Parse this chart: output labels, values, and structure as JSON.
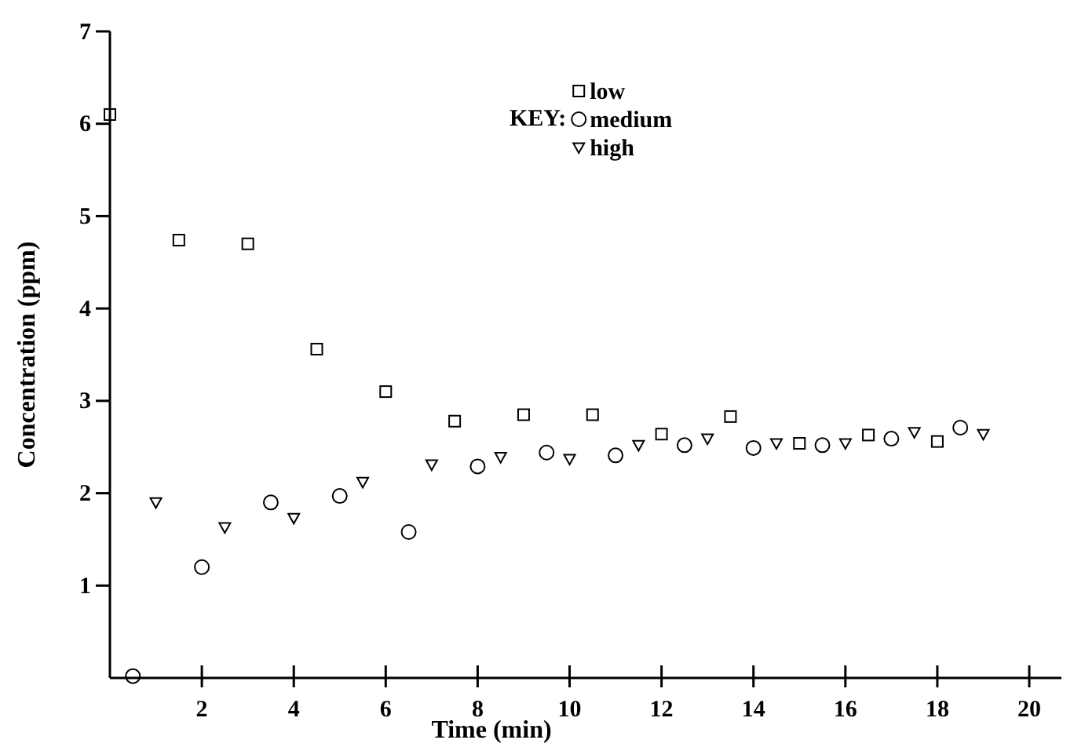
{
  "chart_data": {
    "type": "scatter",
    "xlabel": "Time (min)",
    "ylabel": "Concentration (ppm)",
    "legend_title": "KEY:",
    "legend": "top",
    "xlim": [
      0,
      20.7
    ],
    "ylim": [
      0,
      7
    ],
    "xticks": [
      2,
      4,
      6,
      8,
      10,
      12,
      14,
      16,
      18,
      20
    ],
    "yticks": [
      1,
      2,
      3,
      4,
      5,
      6,
      7
    ],
    "grid": false,
    "series": [
      {
        "name": "low",
        "color": "#000000",
        "marker": "square",
        "x": [
          0,
          1.5,
          3,
          4.5,
          6,
          7.5,
          9,
          10.5,
          12,
          13.5,
          15,
          16.5,
          18
        ],
        "values": [
          6.1,
          4.74,
          4.7,
          3.56,
          3.1,
          2.78,
          2.85,
          2.85,
          2.64,
          2.83,
          2.54,
          2.63,
          2.56
        ]
      },
      {
        "name": "medium",
        "color": "#000000",
        "marker": "circle",
        "x": [
          0.5,
          2,
          3.5,
          5,
          6.5,
          8,
          9.5,
          11,
          12.5,
          14,
          15.5,
          17,
          18.5
        ],
        "values": [
          0.02,
          1.2,
          1.9,
          1.97,
          1.58,
          2.29,
          2.44,
          2.41,
          2.52,
          2.49,
          2.52,
          2.59,
          2.71
        ]
      },
      {
        "name": "high",
        "color": "#000000",
        "marker": "triangle",
        "x": [
          1,
          2.5,
          4,
          5.5,
          7,
          8.5,
          10,
          11.5,
          13,
          14.5,
          16,
          17.5,
          19
        ],
        "values": [
          1.9,
          1.63,
          1.73,
          2.12,
          2.31,
          2.39,
          2.37,
          2.52,
          2.59,
          2.54,
          2.54,
          2.66,
          2.64
        ]
      }
    ]
  }
}
